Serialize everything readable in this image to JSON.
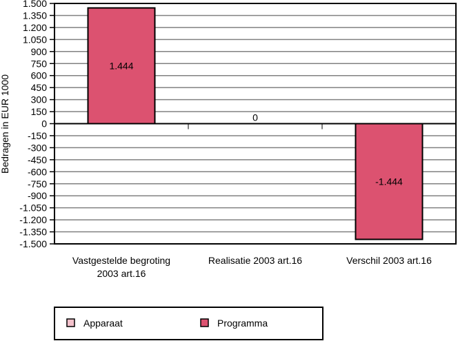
{
  "chart_data": {
    "type": "bar",
    "title": "",
    "xlabel": "",
    "ylabel": "Bedragen in EUR 1000",
    "ylim": [
      -1500,
      1500
    ],
    "ytick_step": 150,
    "yticks": [
      "1.500",
      "1.350",
      "1.200",
      "1.050",
      "900",
      "750",
      "600",
      "450",
      "300",
      "150",
      "0",
      "-150",
      "-300",
      "-450",
      "-600",
      "-750",
      "-900",
      "-1.050",
      "-1.200",
      "-1.350",
      "-1.500"
    ],
    "categories": [
      [
        "Vastgestelde begroting",
        "2003 art.16"
      ],
      [
        "Realisatie 2003 art.16"
      ],
      [
        "Verschil 2003 art.16"
      ]
    ],
    "series": [
      {
        "name": "Apparaat",
        "color": "#f4c2cc",
        "values": [
          0,
          0,
          0
        ]
      },
      {
        "name": "Programma",
        "color": "#dc5270",
        "values": [
          1444,
          0,
          -1444
        ]
      }
    ],
    "data_labels": [
      "1.444",
      "0",
      "-1.444"
    ],
    "grid": true,
    "legend_position": "bottom"
  }
}
